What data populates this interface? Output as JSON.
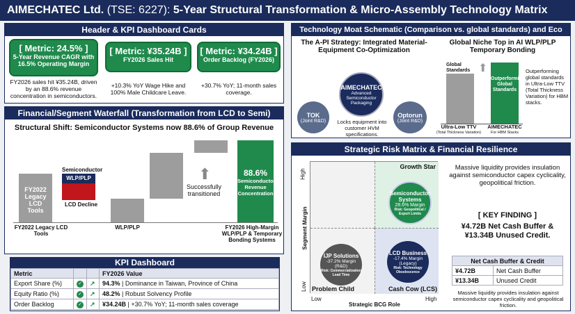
{
  "title": {
    "company": "AIMECHATEC Ltd.",
    "ticker": "(TSE: 6227):",
    "subject": "5-Year Structural Transformation & Micro-Assembly Technology Matrix"
  },
  "kpi_section": {
    "header": "Header & KPI Dashboard Cards",
    "cards": [
      {
        "metric": "[ Metric: 24.5% ]",
        "label": "5-Year Revenue CAGR with 16.5% Operating Margin",
        "note": "FY2026 sales hit ¥35.24B, driven by an 88.6% revenue concentration in semiconductors."
      },
      {
        "metric": "[ Metric: ¥35.24B ]",
        "label": "FY2026 Sales Hit",
        "note": "+10.3% YoY Wage Hike and 100% Male Childcare Leave."
      },
      {
        "metric": "[ Metric: ¥34.24B ]",
        "label": "Order Backlog (FY2026)",
        "note": "+30.7% YoY; 11-month sales coverage."
      }
    ]
  },
  "waterfall": {
    "header": "Financial/Segment Waterfall (Transformation from LCD to Semi)",
    "title": "Structural Shift: Semiconductor Systems now 88.6% of Group Revenue",
    "bar1_label": "FY2022 Legacy LCD Tools",
    "semi_label": "Semiconductor",
    "wlp_label": "WLP/PLP",
    "lcd_decline_label": "LCD Decline",
    "transition_label": "Successfully transitioned",
    "final_value": "88.6%",
    "final_sub": "Semiconductor Revenue Concentration",
    "x_labels": [
      "FY2022 Legacy LCD Tools",
      "WLP/PLP",
      "FY2026 High-Margin WLP/PLP & Temporary Bonding Systems"
    ]
  },
  "kpi_dashboard": {
    "header": "KPI Dashboard",
    "columns": [
      "Metric",
      "FY2026 Value"
    ],
    "rows": [
      {
        "metric": "Export Share (%)",
        "value": "94.3%",
        "desc": "| Dominance in Taiwan, Province of China"
      },
      {
        "metric": "Equity Ratio (%)",
        "value": "48.2%",
        "desc": "| Robust Solvency Profile"
      },
      {
        "metric": "Order Backlog",
        "value": "¥34.24B",
        "desc": "| +30.7% YoY; 11-month sales coverage"
      }
    ],
    "check_glyph": "✓",
    "trend_glyph": "↗"
  },
  "moat": {
    "header": "Technology Moat Schematic (Comparison vs. global standards) and Eco",
    "left_title": "The A-PI Strategy: Integrated Material-Equipment Co-Optimization",
    "center_node": {
      "name": "AIMECHATEC",
      "sub": "Advanced Semiconductor Packaging"
    },
    "left_node": {
      "name": "TOK",
      "sub": "(Joint R&D)"
    },
    "right_node": {
      "name": "Optorun",
      "sub": "(Joint R&D)"
    },
    "lock_text": "Locks equipment into customer HVM specifications.",
    "right_title": "Global Niche Top in AI WLP/PLP Temporary Bonding",
    "bar_global_label": "Global Standards",
    "bar_aime_label": "Outperforming Global Standards",
    "x1": "Ultra-Low TTV",
    "x1_sub": "(Total Thickness Variation)",
    "x2": "AIMECHATEC",
    "x2_sub": "For HBM Stacks",
    "note": "Outperforming global standards in Ultra-Low TTV (Total Thickness Variation) for HBM stacks."
  },
  "risk": {
    "header": "Strategic Risk Matrix & Financial Resilience",
    "y_axis": "Segment Margin",
    "x_axis": "Strategic BCG Role",
    "y_high": "High",
    "y_low": "Low",
    "x_low": "Low",
    "x_high": "High",
    "q_growth": "Growth Star",
    "q_problem": "Problem Child",
    "q_cash": "Cash Cow (LCS)",
    "semi": {
      "name": "Semiconductor Systems",
      "margin": "28.6% Margin",
      "risk": "Risk: Geopolitical / Export Limits"
    },
    "ijp": {
      "name": "IJP Solutions",
      "margin": "-37.2% Margin (R&D)",
      "risk": "Risk: Commercialization Lead Time"
    },
    "lcd": {
      "name": "LCD Business",
      "margin": "-17.4% Margin (Legacy)",
      "risk": "Risk: Technology Obsolescence"
    },
    "liquidity_text": "Massive liquidity provides insulation against semiconductor capex cyclicality, geopolitical friction.",
    "finding_label": "[ KEY FINDING ]",
    "finding_text": "¥4.72B Net Cash Buffer & ¥13.34B Unused Credit.",
    "table_header": "Net Cash Buffer & Credit",
    "table_rows": [
      {
        "value": "¥4.72B",
        "label": "Net Cash Buffer"
      },
      {
        "value": "¥13.34B",
        "label": "Unused Credit"
      }
    ],
    "table_note": "Massive liquidity provides insulation against semiconductor capex cyclicality and geopolitical friction."
  }
}
